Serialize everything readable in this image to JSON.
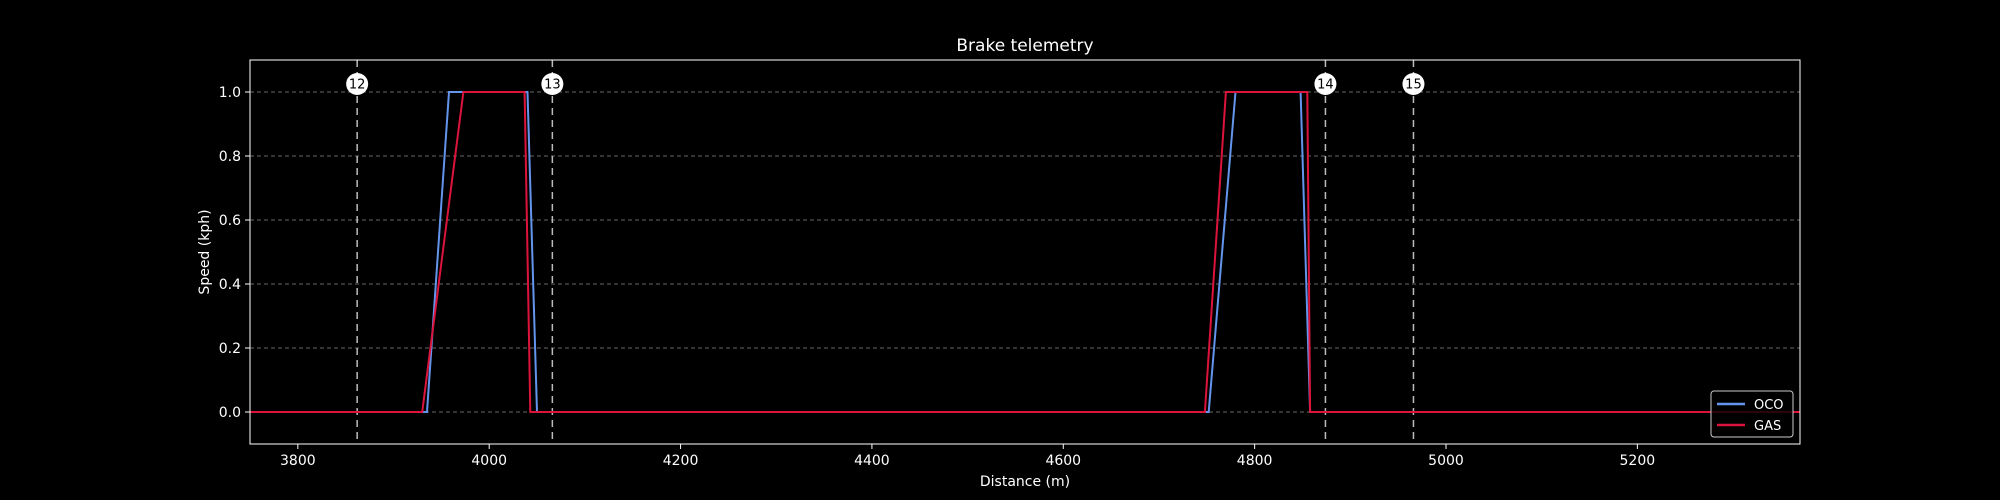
{
  "chart_data": {
    "type": "line",
    "title": "Brake telemetry",
    "xlabel": "Distance (m)",
    "ylabel": "Speed (kph)",
    "xlim": [
      3750,
      5370
    ],
    "ylim": [
      -0.1,
      1.1
    ],
    "xticks": [
      3800,
      4000,
      4200,
      4400,
      4600,
      4800,
      5000,
      5200
    ],
    "yticks": [
      0.0,
      0.2,
      0.4,
      0.6,
      0.8,
      1.0
    ],
    "ytick_labels": [
      "0.0",
      "0.2",
      "0.4",
      "0.6",
      "0.8",
      "1.0"
    ],
    "grid": "horizontal dashed",
    "legend_position": "bottom-right",
    "corners": [
      {
        "label": "12",
        "x": 3862
      },
      {
        "label": "13",
        "x": 4066
      },
      {
        "label": "14",
        "x": 4874
      },
      {
        "label": "15",
        "x": 4966
      }
    ],
    "series": [
      {
        "name": "OCO",
        "color": "#6495ED",
        "x": [
          3750,
          3935,
          3958,
          4040,
          4050,
          4752,
          4780,
          4848,
          4858,
          5370
        ],
        "y": [
          0,
          0,
          1,
          1,
          0,
          0,
          1,
          1,
          0,
          0
        ]
      },
      {
        "name": "GAS",
        "color": "#DC143C",
        "x": [
          3750,
          3930,
          3973,
          4037,
          4043,
          4748,
          4770,
          4855,
          4858,
          5370
        ],
        "y": [
          0,
          0,
          1,
          1,
          0,
          0,
          1,
          1,
          0,
          0
        ]
      }
    ]
  }
}
